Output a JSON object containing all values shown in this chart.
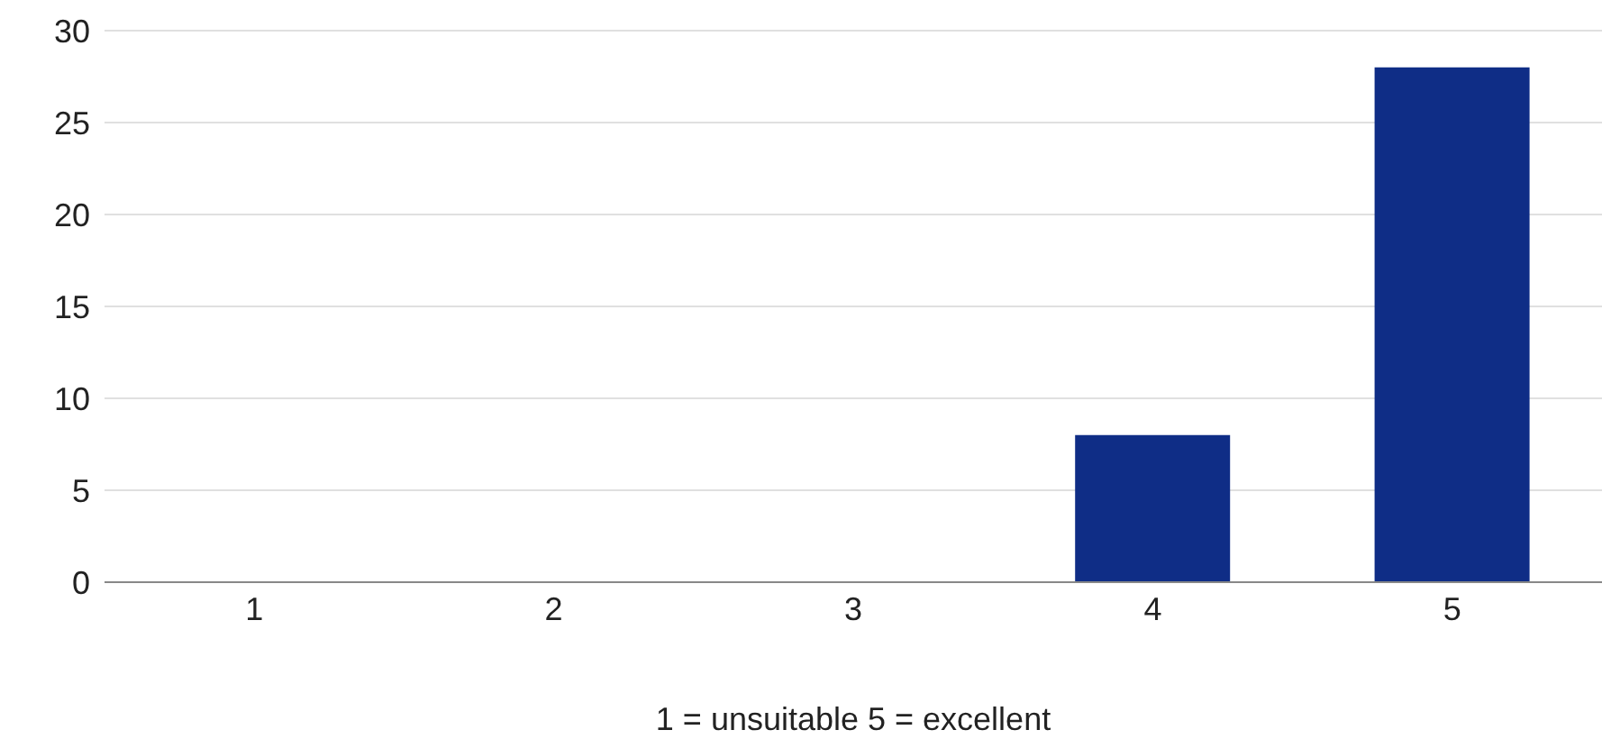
{
  "chart_data": {
    "type": "bar",
    "categories": [
      "1",
      "2",
      "3",
      "4",
      "5"
    ],
    "values": [
      0,
      0,
      0,
      8,
      28
    ],
    "color": "#0f2d86",
    "ylim": [
      0,
      30
    ],
    "yticks": [
      0,
      5,
      10,
      15,
      20,
      25,
      30
    ],
    "grid": "y",
    "xlabel": "1 = unsuitable  5 = excellent"
  }
}
